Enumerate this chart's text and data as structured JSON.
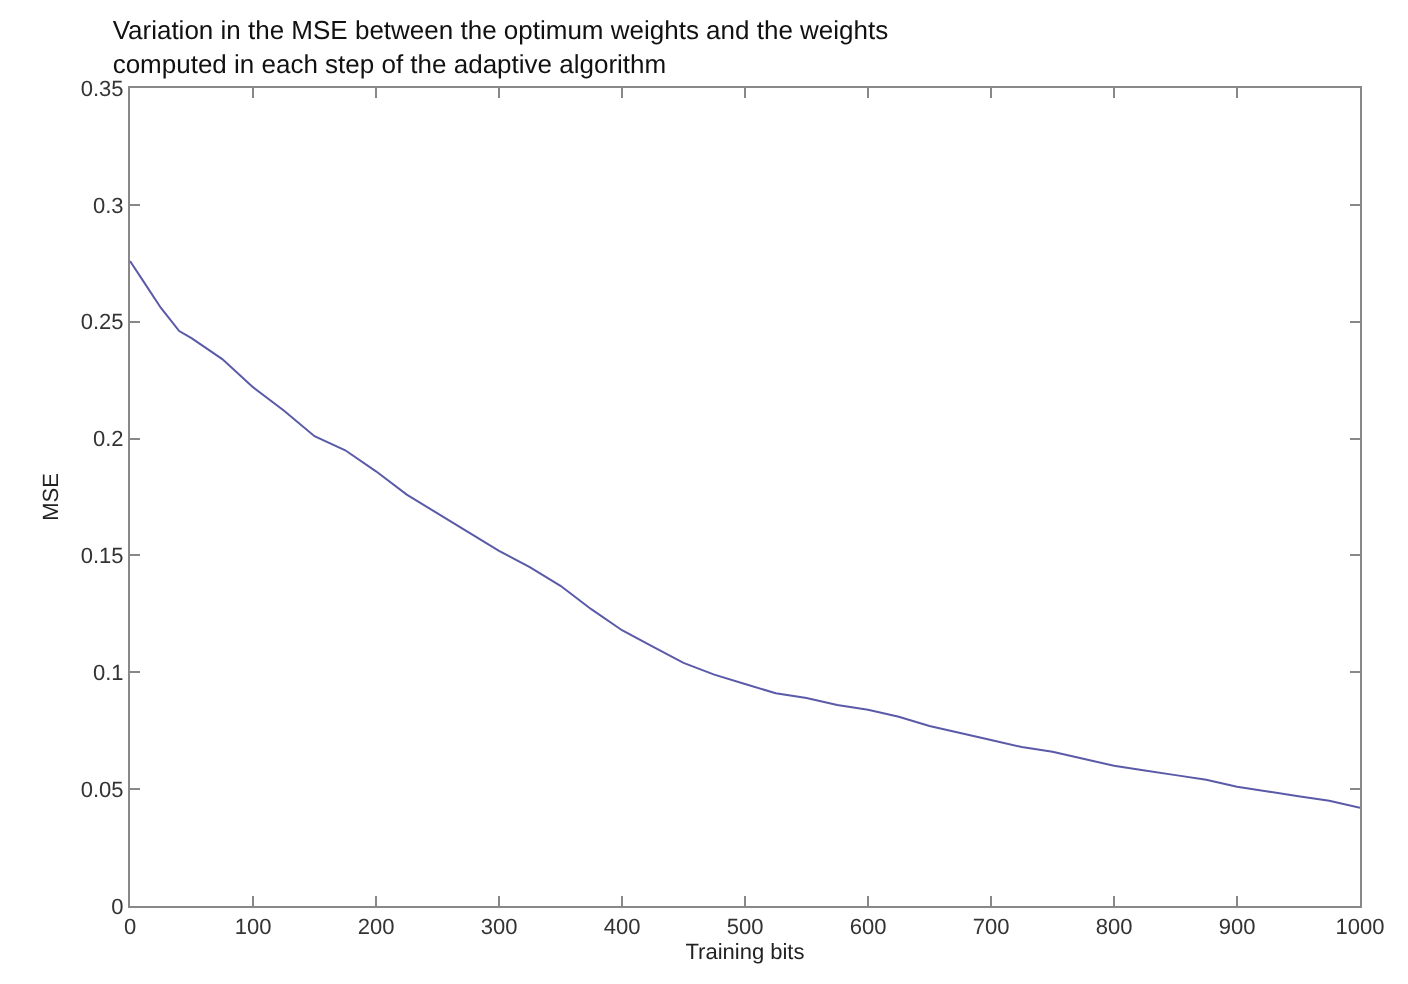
{
  "chart_data": {
    "type": "line",
    "title": "Variation in the MSE between the optimum weights and the weights\ncomputed in each step of the adaptive algorithm",
    "xlabel": "Training bits",
    "ylabel": "MSE",
    "x": [
      0,
      10,
      25,
      40,
      50,
      75,
      100,
      125,
      150,
      175,
      200,
      225,
      250,
      275,
      300,
      325,
      350,
      375,
      400,
      425,
      450,
      475,
      500,
      525,
      550,
      575,
      600,
      625,
      650,
      675,
      700,
      725,
      750,
      775,
      800,
      825,
      850,
      875,
      900,
      925,
      950,
      975,
      1000
    ],
    "series": [
      {
        "color": "#5a5aa8",
        "values": [
          0.276,
          0.268,
          0.256,
          0.246,
          0.243,
          0.234,
          0.222,
          0.212,
          0.201,
          0.195,
          0.186,
          0.176,
          0.168,
          0.16,
          0.152,
          0.145,
          0.137,
          0.127,
          0.118,
          0.111,
          0.104,
          0.099,
          0.095,
          0.091,
          0.089,
          0.086,
          0.084,
          0.081,
          0.077,
          0.074,
          0.071,
          0.068,
          0.066,
          0.063,
          0.06,
          0.058,
          0.056,
          0.054,
          0.051,
          0.049,
          0.047,
          0.045,
          0.042
        ]
      }
    ],
    "xlim": [
      0,
      1000
    ],
    "xticks": [
      0,
      100,
      200,
      300,
      400,
      500,
      600,
      700,
      800,
      900,
      1000
    ],
    "ylim": [
      0,
      0.35
    ],
    "yticks": [
      0,
      0.05,
      0.1,
      0.15,
      0.2,
      0.25,
      0.3,
      0.35
    ],
    "marker": "none",
    "line_style": "solid"
  }
}
